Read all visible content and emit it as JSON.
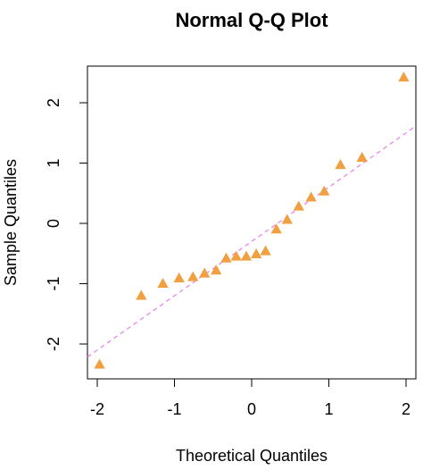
{
  "chart_data": {
    "type": "scatter",
    "title": "Normal Q-Q Plot",
    "xlabel": "Theoretical Quantiles",
    "ylabel": "Sample Quantiles",
    "xlim": [
      -2.0,
      2.0
    ],
    "ylim": [
      -2.45,
      2.5
    ],
    "xticks": [
      "-2",
      "-1",
      "0",
      "1",
      "2"
    ],
    "yticks": [
      "-2",
      "-1",
      "0",
      "1",
      "2"
    ],
    "grid": false,
    "legend": "none",
    "marker": "triangle",
    "point_color": "#F0A040",
    "reference_line": {
      "style": "dashed",
      "color": "#E77FE8",
      "slope": 0.9,
      "intercept": -0.3
    },
    "points": [
      {
        "x": -1.97,
        "y": -2.34
      },
      {
        "x": -1.43,
        "y": -1.2
      },
      {
        "x": -1.15,
        "y": -1.0
      },
      {
        "x": -0.94,
        "y": -0.91
      },
      {
        "x": -0.76,
        "y": -0.89
      },
      {
        "x": -0.61,
        "y": -0.83
      },
      {
        "x": -0.46,
        "y": -0.78
      },
      {
        "x": -0.33,
        "y": -0.58
      },
      {
        "x": -0.2,
        "y": -0.55
      },
      {
        "x": -0.07,
        "y": -0.55
      },
      {
        "x": 0.06,
        "y": -0.51
      },
      {
        "x": 0.18,
        "y": -0.46
      },
      {
        "x": 0.32,
        "y": -0.1
      },
      {
        "x": 0.46,
        "y": 0.06
      },
      {
        "x": 0.61,
        "y": 0.28
      },
      {
        "x": 0.77,
        "y": 0.43
      },
      {
        "x": 0.94,
        "y": 0.53
      },
      {
        "x": 1.15,
        "y": 0.97
      },
      {
        "x": 1.43,
        "y": 1.09
      },
      {
        "x": 1.97,
        "y": 2.42
      }
    ]
  }
}
